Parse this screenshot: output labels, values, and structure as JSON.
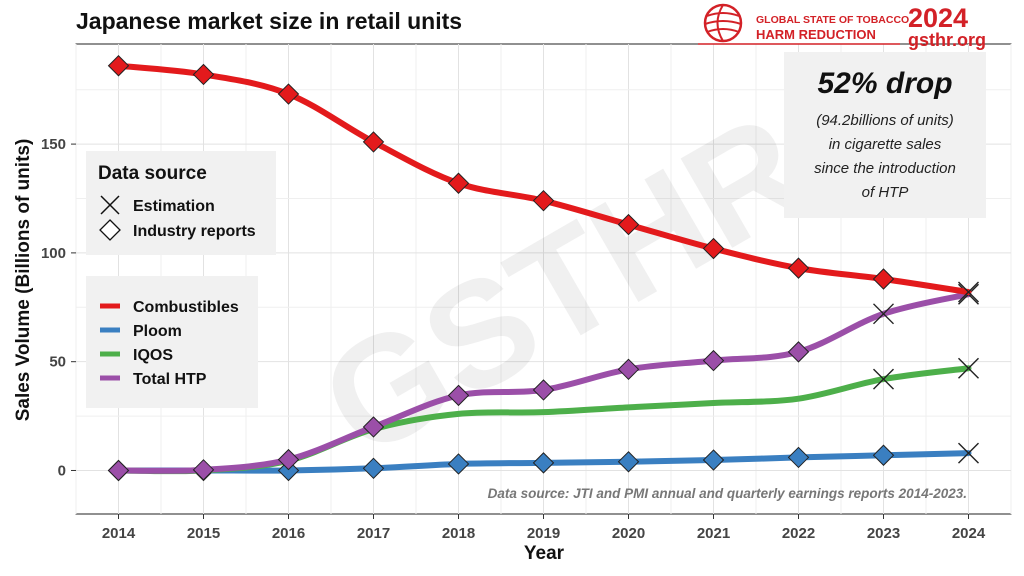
{
  "chart_data": {
    "type": "line",
    "title": "Japanese market size in retail units",
    "xlabel": "Year",
    "ylabel": "Sales Volume (Billions of units)",
    "x": [
      2014,
      2015,
      2016,
      2017,
      2018,
      2019,
      2020,
      2021,
      2022,
      2023,
      2024
    ],
    "xlim": [
      2013.5,
      2024.5
    ],
    "ylim": [
      -20,
      196
    ],
    "yticks": [
      0,
      50,
      100,
      150
    ],
    "grid": true,
    "series": [
      {
        "name": "Combustibles",
        "color": "#e31a1c",
        "values": [
          186,
          182,
          173,
          151,
          132,
          124,
          113,
          102,
          93,
          88,
          82
        ],
        "markers": [
          "diamond",
          "diamond",
          "diamond",
          "diamond",
          "diamond",
          "diamond",
          "diamond",
          "diamond",
          "diamond",
          "diamond",
          "cross"
        ]
      },
      {
        "name": "Ploom",
        "color": "#3a7fc1",
        "values": [
          0,
          0,
          0,
          1,
          3,
          3.5,
          4,
          4.8,
          6,
          7,
          8
        ],
        "markers": [
          "diamond",
          "diamond",
          "diamond",
          "diamond",
          "diamond",
          "diamond",
          "diamond",
          "diamond",
          "diamond",
          "diamond",
          "cross"
        ]
      },
      {
        "name": "IQOS",
        "color": "#4daf4a",
        "values": [
          0,
          0,
          4.5,
          19,
          26,
          26.8,
          29,
          31,
          33,
          42,
          47
        ],
        "markers": [
          "none",
          "none",
          "none",
          "none",
          "none",
          "none",
          "none",
          "none",
          "none",
          "cross",
          "cross"
        ]
      },
      {
        "name": "Total HTP",
        "color": "#9b4fa8",
        "values": [
          0,
          0.3,
          5,
          20,
          34.5,
          37,
          46.5,
          50.5,
          54.5,
          72,
          81
        ],
        "markers": [
          "diamond",
          "diamond",
          "diamond",
          "diamond",
          "diamond",
          "diamond",
          "diamond",
          "diamond",
          "diamond",
          "cross",
          "cross"
        ]
      }
    ],
    "legend_position": "left",
    "source_legend": {
      "title": "Data source",
      "items": [
        {
          "label": "Estimation",
          "marker": "cross"
        },
        {
          "label": "Industry reports",
          "marker": "diamond"
        }
      ]
    }
  },
  "callout": {
    "headline": "52% drop",
    "lines": [
      "(94.2billions of units)",
      "in cigarette sales",
      "since the introduction",
      "of HTP"
    ]
  },
  "source_note": "Data source: JTI and PMI annual and quarterly earnings reports 2014-2023.",
  "logo": {
    "line1": "GLOBAL STATE OF TOBACCO",
    "line2": "HARM REDUCTION",
    "year": "2024",
    "url": "gsthr.org",
    "watermark": "GSTHR"
  }
}
